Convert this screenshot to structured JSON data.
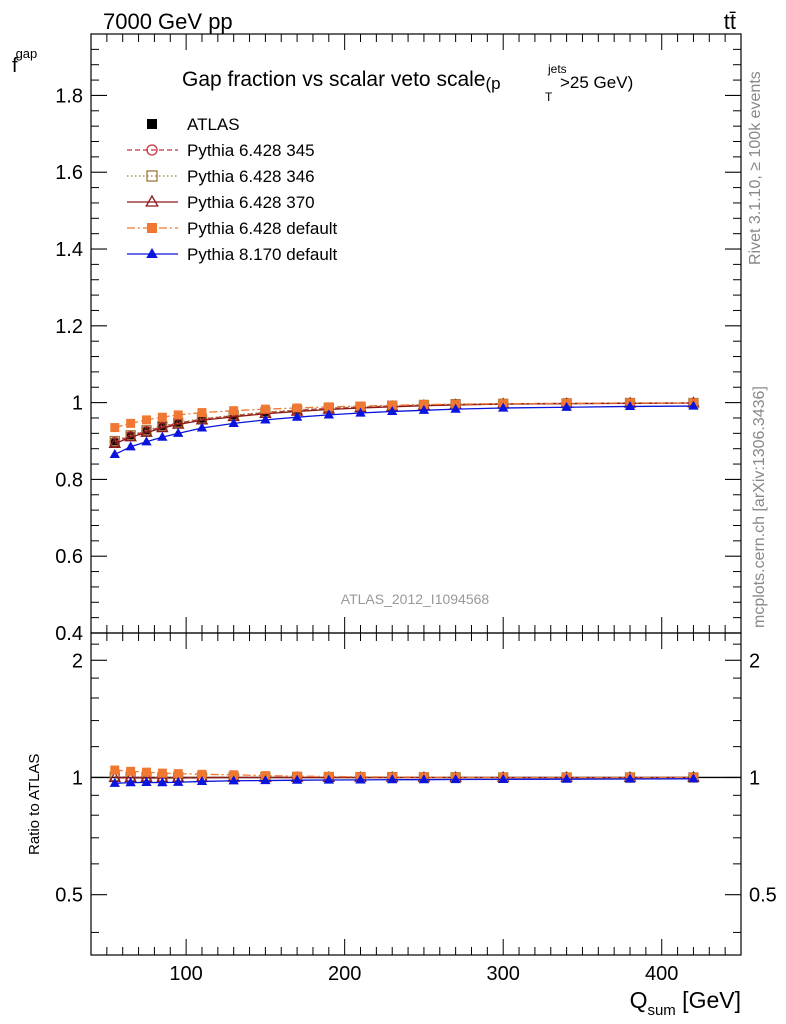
{
  "header": {
    "left": "7000 GeV pp",
    "right": "tt̄"
  },
  "side_labels": {
    "rivet": "Rivet 3.1.10, ≥ 100k events",
    "mcplots": "mcplots.cern.ch [arXiv:1306.3436]"
  },
  "watermark": "ATLAS_2012_I1094568",
  "chart_data": [
    {
      "type": "line",
      "title_main": "Gap fraction vs scalar veto scale",
      "title_cut_prefix": "(p",
      "title_cut_sup": "jets",
      "title_cut_sub": "T",
      "title_cut_suffix": " >25 GeV)",
      "ylabel_main": "f",
      "ylabel_sub": "gap",
      "xlim": [
        40,
        450
      ],
      "ylim": [
        0.4,
        1.96
      ],
      "yticks": [
        0.4,
        0.6,
        0.8,
        1,
        1.2,
        1.4,
        1.6,
        1.8
      ],
      "ytick_labels": [
        "0.4",
        "0.6",
        "0.8",
        "1",
        "1.2",
        "1.4",
        "1.6",
        "1.8"
      ],
      "legend_position": "top-left",
      "x": [
        55,
        65,
        75,
        85,
        95,
        110,
        130,
        150,
        170,
        190,
        210,
        230,
        250,
        270,
        300,
        340,
        380,
        420
      ],
      "series": [
        {
          "name": "ATLAS",
          "color": "#000000",
          "marker": "square-filled",
          "line": "none",
          "values": [
            0.895,
            0.912,
            0.925,
            0.938,
            0.946,
            0.956,
            0.964,
            0.972,
            0.978,
            0.983,
            0.987,
            0.99,
            0.993,
            0.995,
            0.997,
            0.998,
            0.999,
            0.999
          ]
        },
        {
          "name": "Pythia 6.428 345",
          "color": "#c8323c",
          "marker": "circle-open",
          "line": "dashed",
          "values": [
            0.898,
            0.913,
            0.926,
            0.937,
            0.946,
            0.957,
            0.966,
            0.974,
            0.98,
            0.985,
            0.988,
            0.991,
            0.993,
            0.995,
            0.997,
            0.998,
            0.999,
            0.999
          ]
        },
        {
          "name": "Pythia 6.428 346",
          "color": "#a0783c",
          "marker": "square-open",
          "line": "dotted",
          "values": [
            0.9,
            0.915,
            0.928,
            0.939,
            0.948,
            0.958,
            0.967,
            0.975,
            0.981,
            0.986,
            0.989,
            0.992,
            0.994,
            0.996,
            0.997,
            0.998,
            0.999,
            0.999
          ]
        },
        {
          "name": "Pythia 6.428 370",
          "color": "#8b1a1a",
          "marker": "triangle-open",
          "line": "solid",
          "values": [
            0.893,
            0.91,
            0.922,
            0.934,
            0.943,
            0.954,
            0.963,
            0.971,
            0.977,
            0.982,
            0.986,
            0.989,
            0.992,
            0.994,
            0.996,
            0.997,
            0.998,
            0.999
          ]
        },
        {
          "name": "Pythia 6.428 default",
          "color": "#f07832",
          "marker": "square-filled",
          "line": "dashdot",
          "values": [
            0.935,
            0.946,
            0.955,
            0.962,
            0.968,
            0.974,
            0.979,
            0.983,
            0.986,
            0.989,
            0.991,
            0.993,
            0.995,
            0.996,
            0.997,
            0.998,
            0.999,
            0.999
          ]
        },
        {
          "name": "Pythia 8.170 default",
          "color": "#0a14dc",
          "marker": "triangle-filled",
          "line": "solid",
          "values": [
            0.865,
            0.885,
            0.898,
            0.91,
            0.92,
            0.934,
            0.946,
            0.955,
            0.962,
            0.968,
            0.973,
            0.977,
            0.98,
            0.983,
            0.986,
            0.988,
            0.99,
            0.991
          ]
        }
      ]
    },
    {
      "type": "line",
      "ylabel": "Ratio to ATLAS",
      "xlabel_main": "Q",
      "xlabel_sub": "sum",
      "xlabel_unit": " [GeV]",
      "xlim": [
        40,
        450
      ],
      "ylim": [
        0.35,
        2.35
      ],
      "yscale": "log",
      "yticks": [
        0.5,
        1,
        2
      ],
      "ytick_labels": [
        "0.5",
        "1",
        "2"
      ],
      "xticks": [
        100,
        200,
        300,
        400
      ],
      "xtick_labels": [
        "100",
        "200",
        "300",
        "400"
      ],
      "x": [
        55,
        65,
        75,
        85,
        95,
        110,
        130,
        150,
        170,
        190,
        210,
        230,
        250,
        270,
        300,
        340,
        380,
        420
      ],
      "series": [
        {
          "name": "Pythia 6.428 345",
          "color": "#c8323c",
          "marker": "circle-open",
          "line": "dashed",
          "values": [
            1.003,
            1.001,
            1.001,
            0.999,
            1.0,
            1.001,
            1.002,
            1.002,
            1.002,
            1.002,
            1.001,
            1.001,
            1.0,
            1.0,
            1.0,
            1.0,
            1.0,
            1.0
          ]
        },
        {
          "name": "Pythia 6.428 346",
          "color": "#a0783c",
          "marker": "square-open",
          "line": "dotted",
          "values": [
            1.006,
            1.003,
            1.003,
            1.001,
            1.002,
            1.002,
            1.003,
            1.003,
            1.003,
            1.003,
            1.002,
            1.002,
            1.001,
            1.001,
            1.0,
            1.0,
            1.0,
            1.0
          ]
        },
        {
          "name": "Pythia 6.428 370",
          "color": "#8b1a1a",
          "marker": "triangle-open",
          "line": "solid",
          "values": [
            0.998,
            0.998,
            0.997,
            0.996,
            0.997,
            0.998,
            0.999,
            0.999,
            0.999,
            0.999,
            0.999,
            0.999,
            0.999,
            0.999,
            0.999,
            0.999,
            0.999,
            1.0
          ]
        },
        {
          "name": "Pythia 6.428 default",
          "color": "#f07832",
          "marker": "square-filled",
          "line": "dashdot",
          "values": [
            1.045,
            1.037,
            1.032,
            1.026,
            1.023,
            1.019,
            1.016,
            1.011,
            1.008,
            1.006,
            1.004,
            1.003,
            1.002,
            1.001,
            1.0,
            1.0,
            1.0,
            1.0
          ]
        },
        {
          "name": "Pythia 8.170 default",
          "color": "#0a14dc",
          "marker": "triangle-filled",
          "line": "solid",
          "values": [
            0.966,
            0.97,
            0.971,
            0.97,
            0.972,
            0.977,
            0.981,
            0.982,
            0.984,
            0.985,
            0.986,
            0.987,
            0.987,
            0.988,
            0.989,
            0.99,
            0.991,
            0.992
          ]
        }
      ]
    }
  ]
}
